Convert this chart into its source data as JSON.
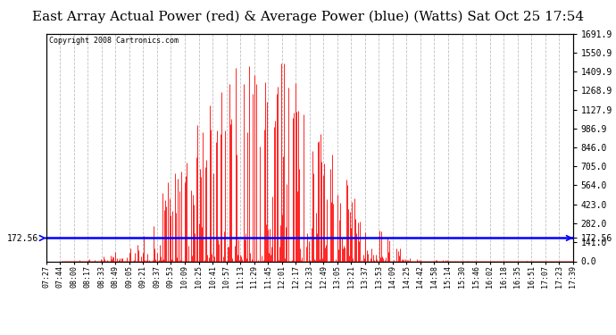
{
  "title": "East Array Actual Power (red) & Average Power (blue) (Watts) Sat Oct 25 17:54",
  "copyright": "Copyright 2008 Cartronics.com",
  "avg_power": 172.56,
  "y_max": 1691.9,
  "y_min": 0.0,
  "y_ticks_right": [
    0.0,
    141.0,
    282.0,
    423.0,
    564.0,
    705.0,
    846.0,
    986.9,
    1127.9,
    1268.9,
    1409.9,
    1550.9,
    1691.9
  ],
  "x_labels": [
    "07:27",
    "07:44",
    "08:00",
    "08:17",
    "08:33",
    "08:49",
    "09:05",
    "09:21",
    "09:37",
    "09:53",
    "10:09",
    "10:25",
    "10:41",
    "10:57",
    "11:13",
    "11:29",
    "11:45",
    "12:01",
    "12:17",
    "12:33",
    "12:49",
    "13:05",
    "13:21",
    "13:37",
    "13:53",
    "14:09",
    "14:25",
    "14:42",
    "14:58",
    "15:14",
    "15:30",
    "15:46",
    "16:02",
    "16:18",
    "16:35",
    "16:51",
    "17:07",
    "17:23",
    "17:39"
  ],
  "bar_color": "#ff0000",
  "line_color": "#0000ff",
  "grid_color": "#c0c0c0",
  "bg_color": "#ffffff",
  "title_fontsize": 11,
  "avg_label": "172.56",
  "n_points": 600
}
